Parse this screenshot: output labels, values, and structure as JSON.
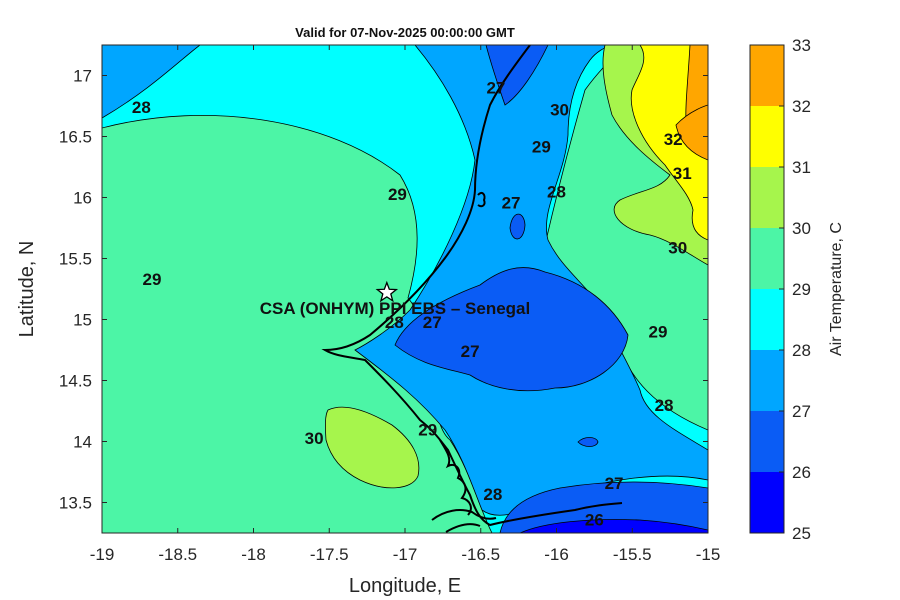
{
  "title": "Valid for 07-Nov-2025 00:00:00 GMT",
  "x_axis": {
    "label": "Longitude, E",
    "range": [
      -19,
      -15
    ],
    "ticks": [
      "-19",
      "-18.5",
      "-18",
      "-17.5",
      "-17",
      "-16.5",
      "-16",
      "-15.5",
      "-15"
    ]
  },
  "y_axis": {
    "label": "Latitude, N",
    "range": [
      13.25,
      17.25
    ],
    "ticks": [
      "13.5",
      "14",
      "14.5",
      "15",
      "15.5",
      "16",
      "16.5",
      "17"
    ]
  },
  "colorbar": {
    "label": "Air Temperature, C",
    "levels": [
      "25",
      "26",
      "27",
      "28",
      "29",
      "30",
      "31",
      "32",
      "33"
    ],
    "colors": [
      "#0000ff",
      "#0a5cf5",
      "#00a6ff",
      "#00ffff",
      "#4cf5a6",
      "#a6f54c",
      "#ffff00",
      "#ffa600",
      "#ff5c00"
    ]
  },
  "station": {
    "name": "CSA (ONHYM) PPI EBS  – Senegal",
    "lon": -17.12,
    "lat": 15.22,
    "marker": "star-icon"
  },
  "contour_labels": [
    {
      "text": "28",
      "lon": -18.74,
      "lat": 16.74
    },
    {
      "text": "29",
      "lon": -18.67,
      "lat": 15.33
    },
    {
      "text": "29",
      "lon": -17.05,
      "lat": 16.03
    },
    {
      "text": "27",
      "lon": -16.4,
      "lat": 16.9
    },
    {
      "text": "30",
      "lon": -15.98,
      "lat": 16.72
    },
    {
      "text": "29",
      "lon": -16.1,
      "lat": 16.42
    },
    {
      "text": "32",
      "lon": -15.23,
      "lat": 16.48
    },
    {
      "text": "31",
      "lon": -15.17,
      "lat": 16.2
    },
    {
      "text": "27",
      "lon": -16.3,
      "lat": 15.96
    },
    {
      "text": "28",
      "lon": -16.0,
      "lat": 16.05
    },
    {
      "text": "30",
      "lon": -15.2,
      "lat": 15.59
    },
    {
      "text": "28",
      "lon": -17.07,
      "lat": 14.98
    },
    {
      "text": "27",
      "lon": -16.82,
      "lat": 14.98
    },
    {
      "text": "27",
      "lon": -16.57,
      "lat": 14.74
    },
    {
      "text": "29",
      "lon": -15.33,
      "lat": 14.9
    },
    {
      "text": "28",
      "lon": -15.29,
      "lat": 14.3
    },
    {
      "text": "30",
      "lon": -17.6,
      "lat": 14.03
    },
    {
      "text": "29",
      "lon": -16.85,
      "lat": 14.1
    },
    {
      "text": "28",
      "lon": -16.42,
      "lat": 13.57
    },
    {
      "text": "27",
      "lon": -15.62,
      "lat": 13.66
    },
    {
      "text": "26",
      "lon": -15.75,
      "lat": 13.36
    }
  ]
}
